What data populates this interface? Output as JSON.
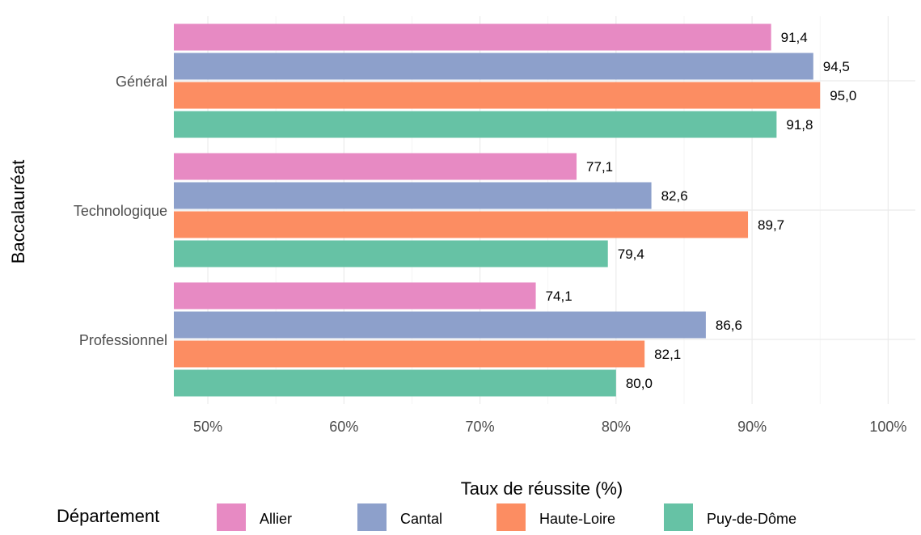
{
  "chart_data": {
    "type": "bar",
    "orientation": "horizontal",
    "title": "",
    "xlabel": "Taux de réussite (%)",
    "ylabel": "Baccalauréat",
    "xlim": [
      47.5,
      102
    ],
    "x_ticks": [
      50,
      60,
      70,
      80,
      90,
      100
    ],
    "x_tick_labels": [
      "50%",
      "60%",
      "70%",
      "80%",
      "90%",
      "100%"
    ],
    "grid": true,
    "legend_position": "bottom",
    "legend_title": "Département",
    "categories": [
      "Général",
      "Technologique",
      "Professionnel"
    ],
    "series": [
      {
        "name": "Allier",
        "color": "#e78ac3",
        "values": [
          91.4,
          77.1,
          74.1
        ],
        "labels": [
          "91,4",
          "77,1",
          "74,1"
        ]
      },
      {
        "name": "Cantal",
        "color": "#8da0cb",
        "values": [
          94.5,
          82.6,
          86.6
        ],
        "labels": [
          "94,5",
          "82,6",
          "86,6"
        ]
      },
      {
        "name": "Haute-Loire",
        "color": "#fc8d62",
        "values": [
          95.0,
          89.7,
          82.1
        ],
        "labels": [
          "95,0",
          "89,7",
          "82,1"
        ]
      },
      {
        "name": "Puy-de-Dôme",
        "color": "#66c2a5",
        "values": [
          91.8,
          79.4,
          80.0
        ],
        "labels": [
          "91,8",
          "79,4",
          "80,0"
        ]
      }
    ]
  }
}
